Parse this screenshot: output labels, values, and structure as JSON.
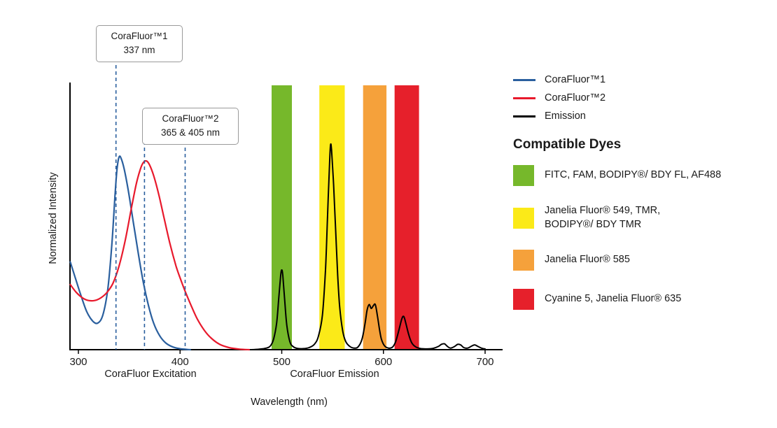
{
  "chart_data": {
    "type": "line",
    "xlabel": "Wavelength (nm)",
    "ylabel": "Normalized Intensity",
    "xlim": [
      300,
      700
    ],
    "ylim": [
      0,
      1
    ],
    "xticks": [
      300,
      400,
      500,
      600,
      700
    ],
    "grid": false,
    "x_group_labels": [
      {
        "text": "CoraFluor Excitation"
      },
      {
        "text": "CoraFluor Emission"
      }
    ],
    "callouts": [
      {
        "line1": "CoraFluor™1",
        "line2": "337 nm"
      },
      {
        "line1": "CoraFluor™2",
        "line2": "365 & 405 nm"
      }
    ],
    "excitation_markers": [
      {
        "wavelength_nm": 337
      },
      {
        "wavelength_nm": 365
      },
      {
        "wavelength_nm": 405
      }
    ],
    "marker_color": "#2A5F9E",
    "bands": [
      {
        "name": "FITC / FAM / BODIPY FL / AF488 window",
        "from_nm": 490,
        "to_nm": 510,
        "color": "#76B82B"
      },
      {
        "name": "Janelia Fluor 549 / TMR window",
        "from_nm": 537,
        "to_nm": 562,
        "color": "#FBEA18"
      },
      {
        "name": "Janelia Fluor 585 window",
        "from_nm": 580,
        "to_nm": 603,
        "color": "#F5A13B"
      },
      {
        "name": "Cyanine 5 / Janelia Fluor 635 window",
        "from_nm": 611,
        "to_nm": 635,
        "color": "#E6202B"
      }
    ],
    "series": [
      {
        "name": "CoraFluor™1",
        "color": "#2A5F9E",
        "points": [
          [
            292,
            0.33
          ],
          [
            297,
            0.27
          ],
          [
            302,
            0.21
          ],
          [
            308,
            0.145
          ],
          [
            314,
            0.108
          ],
          [
            319,
            0.1
          ],
          [
            324,
            0.13
          ],
          [
            329,
            0.23
          ],
          [
            333,
            0.4
          ],
          [
            336,
            0.58
          ],
          [
            338,
            0.68
          ],
          [
            340,
            0.725
          ],
          [
            342,
            0.72
          ],
          [
            345,
            0.68
          ],
          [
            349,
            0.6
          ],
          [
            354,
            0.48
          ],
          [
            359,
            0.36
          ],
          [
            364,
            0.25
          ],
          [
            369,
            0.165
          ],
          [
            374,
            0.1
          ],
          [
            380,
            0.052
          ],
          [
            386,
            0.025
          ],
          [
            393,
            0.01
          ],
          [
            401,
            0.003
          ],
          [
            410,
            0
          ]
        ]
      },
      {
        "name": "CoraFluor™2",
        "color": "#E8192C",
        "points": [
          [
            292,
            0.245
          ],
          [
            298,
            0.215
          ],
          [
            304,
            0.195
          ],
          [
            310,
            0.185
          ],
          [
            316,
            0.185
          ],
          [
            322,
            0.195
          ],
          [
            328,
            0.215
          ],
          [
            334,
            0.25
          ],
          [
            340,
            0.315
          ],
          [
            346,
            0.41
          ],
          [
            352,
            0.53
          ],
          [
            357,
            0.625
          ],
          [
            361,
            0.68
          ],
          [
            364,
            0.705
          ],
          [
            367,
            0.71
          ],
          [
            370,
            0.695
          ],
          [
            374,
            0.655
          ],
          [
            379,
            0.585
          ],
          [
            384,
            0.5
          ],
          [
            390,
            0.4
          ],
          [
            396,
            0.315
          ],
          [
            401,
            0.26
          ],
          [
            406,
            0.21
          ],
          [
            411,
            0.165
          ],
          [
            417,
            0.115
          ],
          [
            424,
            0.072
          ],
          [
            431,
            0.042
          ],
          [
            439,
            0.02
          ],
          [
            448,
            0.008
          ],
          [
            458,
            0.002
          ],
          [
            468,
            0
          ]
        ]
      },
      {
        "name": "Emission",
        "color": "#000000",
        "points": [
          [
            470,
            0
          ],
          [
            478,
            0.002
          ],
          [
            485,
            0.006
          ],
          [
            489,
            0.015
          ],
          [
            492,
            0.04
          ],
          [
            495,
            0.1
          ],
          [
            497,
            0.19
          ],
          [
            499,
            0.28
          ],
          [
            500,
            0.3
          ],
          [
            501,
            0.28
          ],
          [
            503,
            0.18
          ],
          [
            505,
            0.09
          ],
          [
            508,
            0.03
          ],
          [
            511,
            0.012
          ],
          [
            515,
            0.005
          ],
          [
            521,
            0.004
          ],
          [
            527,
            0.008
          ],
          [
            532,
            0.02
          ],
          [
            536,
            0.05
          ],
          [
            540,
            0.13
          ],
          [
            543,
            0.3
          ],
          [
            545,
            0.5
          ],
          [
            547,
            0.7
          ],
          [
            548,
            0.77
          ],
          [
            549,
            0.75
          ],
          [
            551,
            0.62
          ],
          [
            553,
            0.45
          ],
          [
            555,
            0.28
          ],
          [
            557,
            0.16
          ],
          [
            560,
            0.07
          ],
          [
            563,
            0.03
          ],
          [
            567,
            0.012
          ],
          [
            571,
            0.006
          ],
          [
            575,
            0.01
          ],
          [
            579,
            0.04
          ],
          [
            582,
            0.1
          ],
          [
            584,
            0.15
          ],
          [
            586,
            0.17
          ],
          [
            588,
            0.155
          ],
          [
            590,
            0.165
          ],
          [
            592,
            0.17
          ],
          [
            594,
            0.13
          ],
          [
            596,
            0.08
          ],
          [
            598,
            0.04
          ],
          [
            601,
            0.015
          ],
          [
            605,
            0.006
          ],
          [
            609,
            0.01
          ],
          [
            612,
            0.03
          ],
          [
            615,
            0.07
          ],
          [
            618,
            0.115
          ],
          [
            620,
            0.125
          ],
          [
            622,
            0.1
          ],
          [
            625,
            0.055
          ],
          [
            628,
            0.025
          ],
          [
            632,
            0.01
          ],
          [
            637,
            0.004
          ],
          [
            643,
            0.003
          ],
          [
            649,
            0.005
          ],
          [
            654,
            0.012
          ],
          [
            657,
            0.02
          ],
          [
            660,
            0.022
          ],
          [
            663,
            0.012
          ],
          [
            666,
            0.006
          ],
          [
            670,
            0.012
          ],
          [
            673,
            0.02
          ],
          [
            676,
            0.018
          ],
          [
            679,
            0.008
          ],
          [
            683,
            0.006
          ],
          [
            687,
            0.014
          ],
          [
            690,
            0.018
          ],
          [
            693,
            0.012
          ],
          [
            697,
            0.005
          ],
          [
            700,
            0.003
          ]
        ]
      }
    ]
  },
  "legend": {
    "lines": [
      {
        "label": "CoraFluor™1",
        "color": "#2A5F9E"
      },
      {
        "label": "CoraFluor™2",
        "color": "#E8192C"
      },
      {
        "label": "Emission",
        "color": "#000000"
      }
    ],
    "dyes_heading": "Compatible Dyes",
    "dyes": [
      {
        "label": "FITC, FAM, BODIPY®/ BDY FL, AF488",
        "color": "#76B82B"
      },
      {
        "label": "Janelia Fluor® 549, TMR,\nBODIPY®/ BDY TMR",
        "color": "#FBEA18"
      },
      {
        "label": "Janelia Fluor® 585",
        "color": "#F5A13B"
      },
      {
        "label": "Cyanine 5, Janelia Fluor® 635",
        "color": "#E6202B"
      }
    ]
  }
}
